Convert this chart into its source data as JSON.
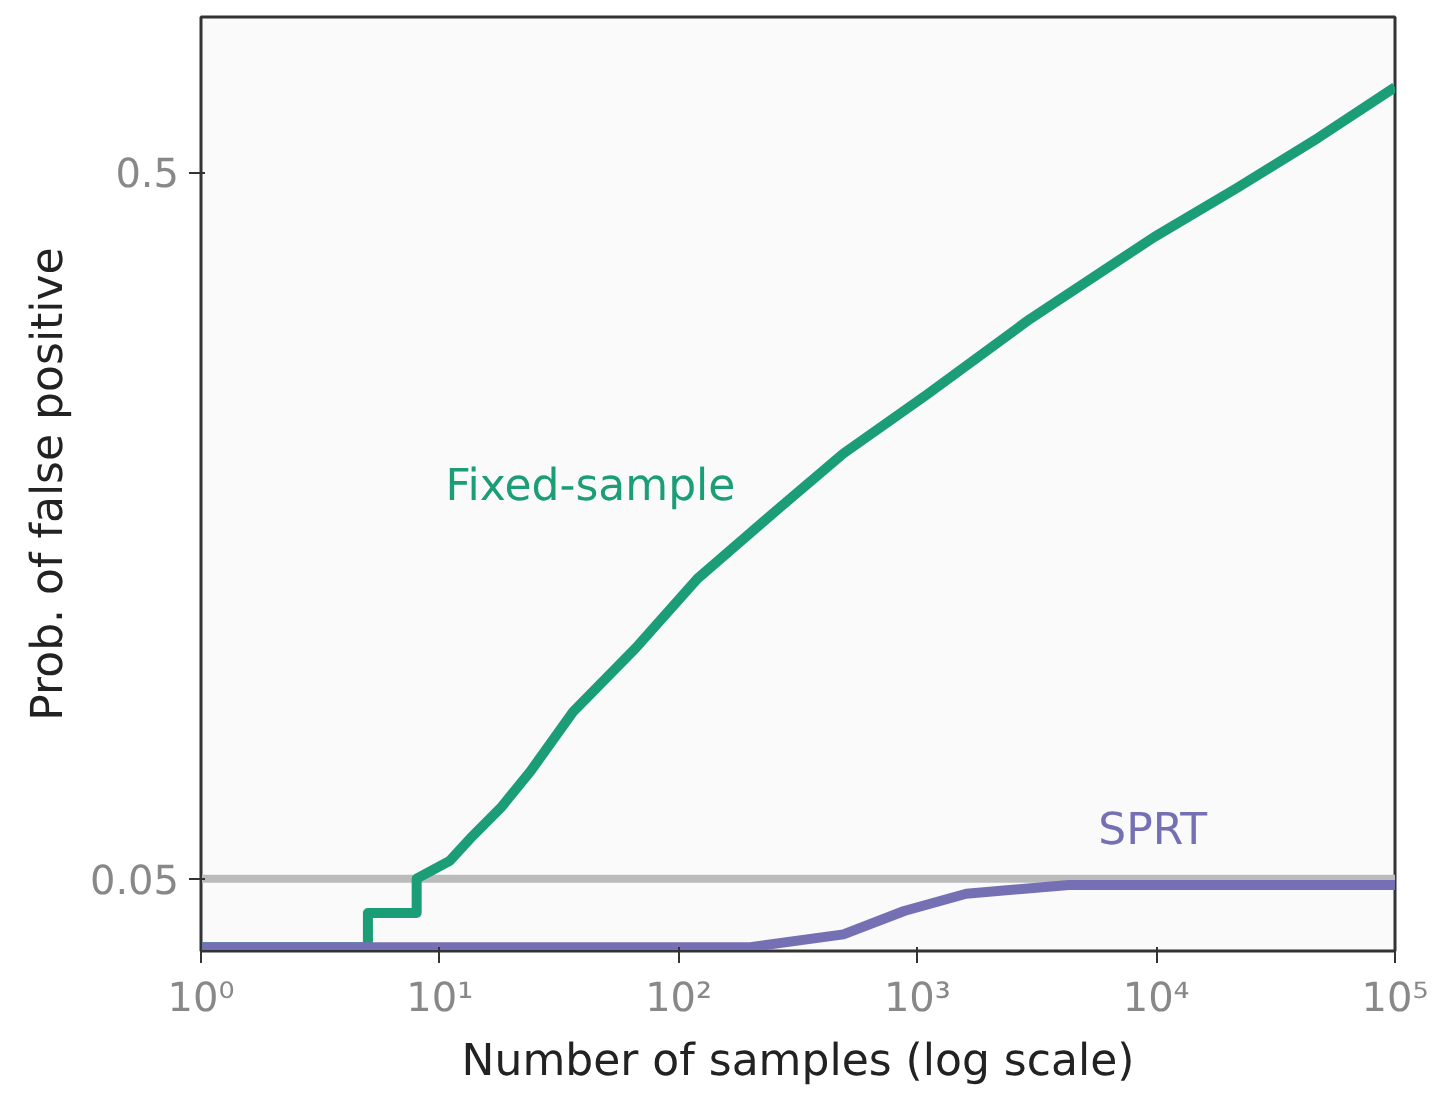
{
  "chart_data": {
    "type": "line",
    "xlabel": "Number of samples (log scale)",
    "ylabel": "Prob. of false positive",
    "log": "xy",
    "xlim": [
      1,
      100000
    ],
    "ylim": [
      0.0395,
      0.83
    ],
    "xticks": [
      {
        "value": 1,
        "label": "10⁰"
      },
      {
        "value": 10,
        "label": "10¹"
      },
      {
        "value": 100,
        "label": "10²"
      },
      {
        "value": 1000,
        "label": "10³"
      },
      {
        "value": 10000,
        "label": "10⁴"
      },
      {
        "value": 100000,
        "label": "10⁵"
      }
    ],
    "yticks": [
      0.05,
      0.5
    ],
    "grid": false,
    "legend": false,
    "series": [
      {
        "name": "Fixed-sample",
        "color": "#1b9e77",
        "x": [
          1,
          5,
          5,
          8,
          8,
          11,
          13.4,
          18,
          24,
          36,
          66,
          120,
          267,
          490,
          1090,
          2960,
          9800,
          21700,
          47800,
          100000
        ],
        "values": [
          0.04,
          0.04,
          0.0447,
          0.0447,
          0.05,
          0.053,
          0.057,
          0.063,
          0.071,
          0.086,
          0.106,
          0.133,
          0.168,
          0.2,
          0.242,
          0.31,
          0.405,
          0.475,
          0.56,
          0.66
        ]
      },
      {
        "name": "SPRT",
        "color": "#7570b3",
        "x": [
          1,
          200,
          490,
          880,
          1600,
          4300,
          100000
        ],
        "values": [
          0.04,
          0.04,
          0.0417,
          0.045,
          0.0476,
          0.049,
          0.049
        ]
      }
    ],
    "ref_lines": [
      {
        "axis": "y",
        "value": 0.05,
        "color": "#bbbbbb"
      }
    ]
  }
}
